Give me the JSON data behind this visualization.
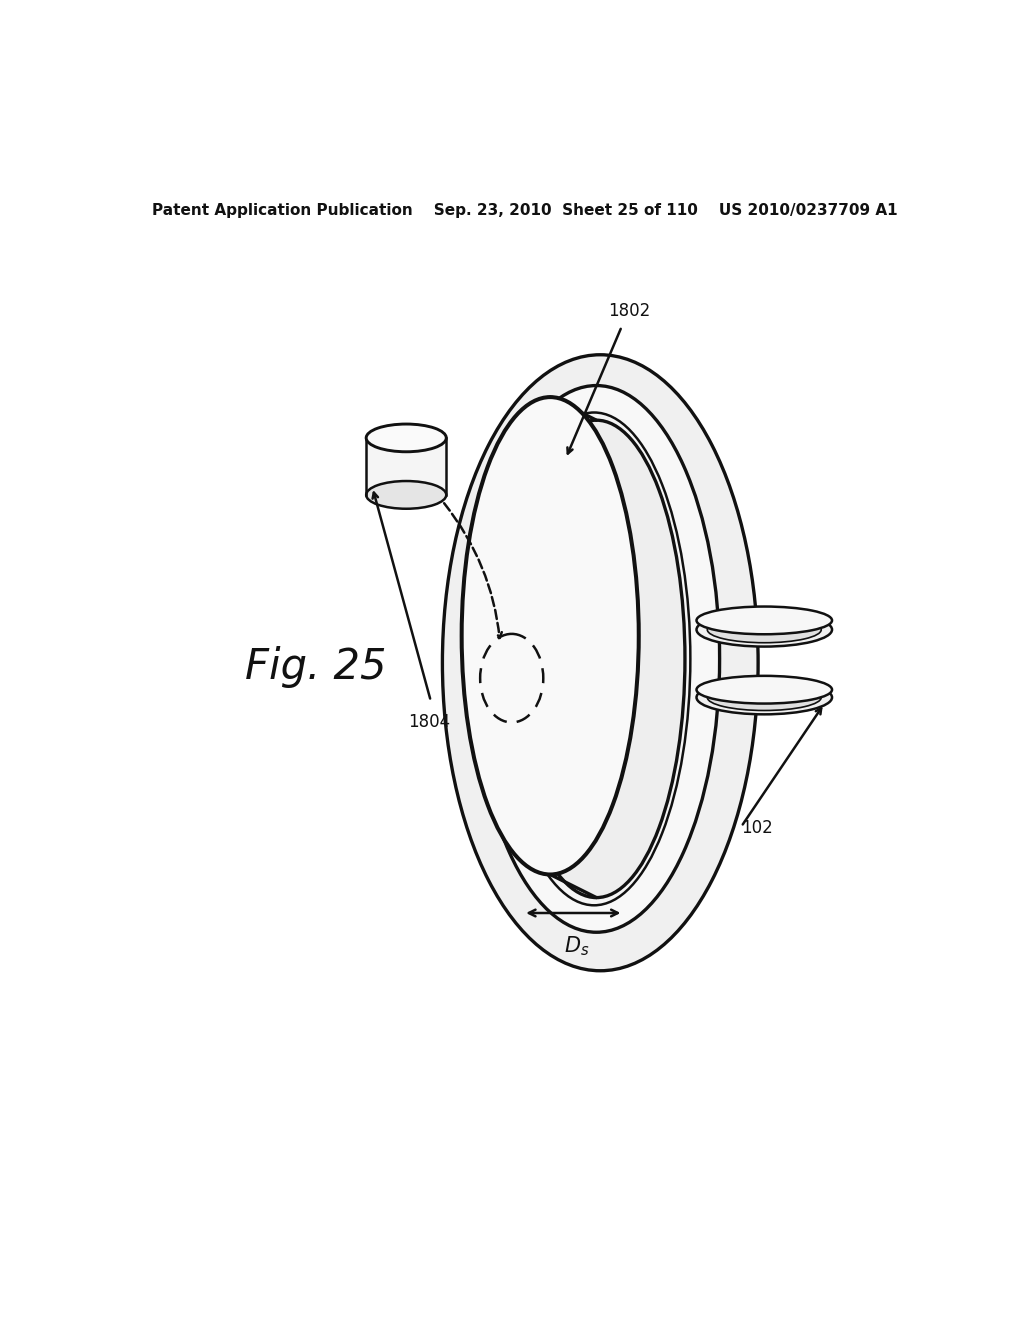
{
  "bg_color": "#ffffff",
  "line_color": "#111111",
  "header_text": "Patent Application Publication    Sep. 23, 2010  Sheet 25 of 110    US 2010/0237709 A1",
  "fig_label": "Fig. 25",
  "label_1802": "1802",
  "label_1804": "1804",
  "label_102": "102",
  "header_fontsize": 11,
  "fig_label_fontsize": 30,
  "annotation_fontsize": 12
}
